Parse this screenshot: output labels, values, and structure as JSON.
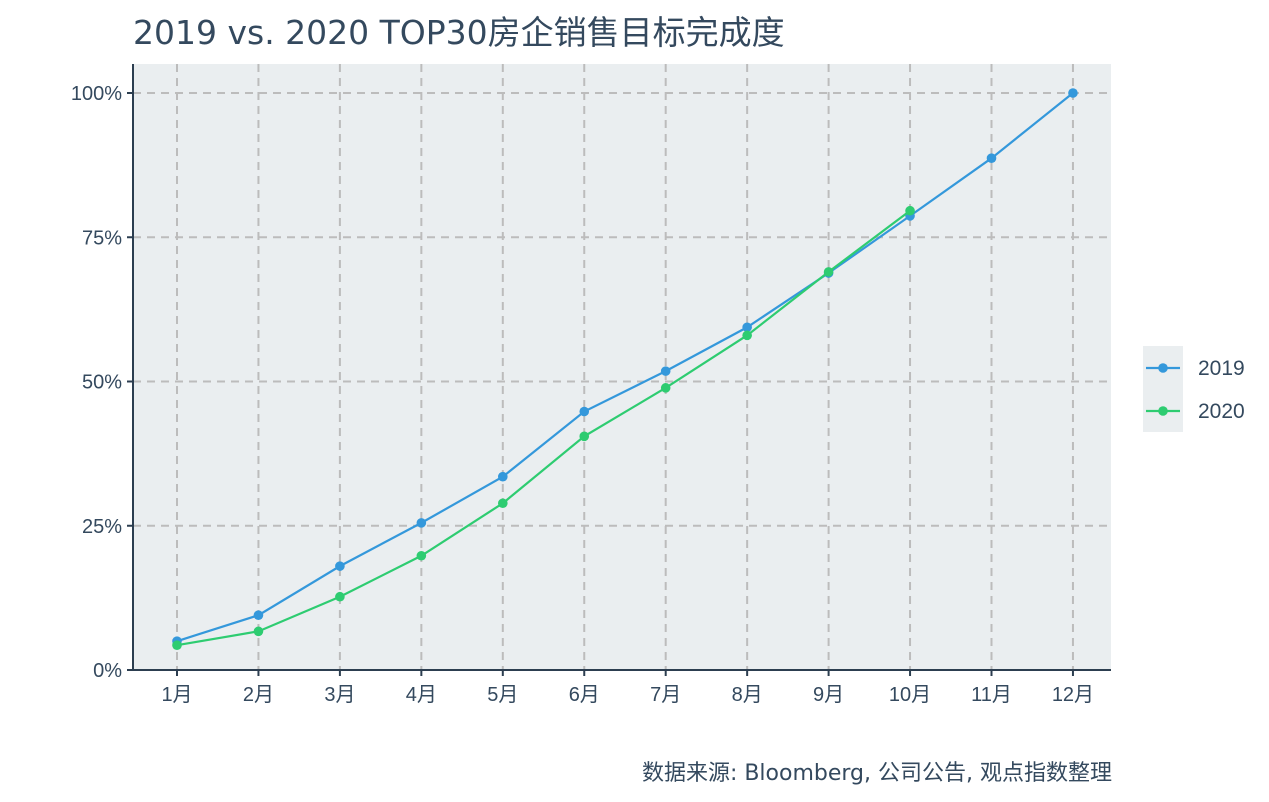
{
  "title": "2019 vs. 2020 TOP30房企销售目标完成度",
  "source_note": "数据来源: Bloomberg, 公司公告, 观点指数整理",
  "colors": {
    "plot_background": "#eaeef0",
    "grid": "#bcbcbc",
    "axis": "#2c3e50",
    "series_2019": "#3498db",
    "series_2020": "#2ecc71"
  },
  "chart_data": {
    "type": "line",
    "title": "2019 vs. 2020 TOP30房企销售目标完成度",
    "xlabel": "",
    "ylabel": "",
    "categories": [
      "1月",
      "2月",
      "3月",
      "4月",
      "5月",
      "6月",
      "7月",
      "8月",
      "9月",
      "10月",
      "11月",
      "12月"
    ],
    "y_ticks": [
      0,
      25,
      50,
      75,
      100
    ],
    "y_tick_labels": [
      "0%",
      "25%",
      "50%",
      "75%",
      "100%"
    ],
    "ylim": [
      0,
      100
    ],
    "grid": true,
    "legend_position": "right",
    "series": [
      {
        "name": "2019",
        "color": "#3498db",
        "values": [
          5.0,
          9.5,
          18.0,
          25.5,
          33.5,
          44.8,
          51.8,
          59.4,
          68.8,
          78.7,
          88.7,
          100.0
        ]
      },
      {
        "name": "2020",
        "color": "#2ecc71",
        "values": [
          4.3,
          6.7,
          12.7,
          19.8,
          28.9,
          40.5,
          48.9,
          58.0,
          69.0,
          79.6,
          null,
          null
        ]
      }
    ]
  }
}
